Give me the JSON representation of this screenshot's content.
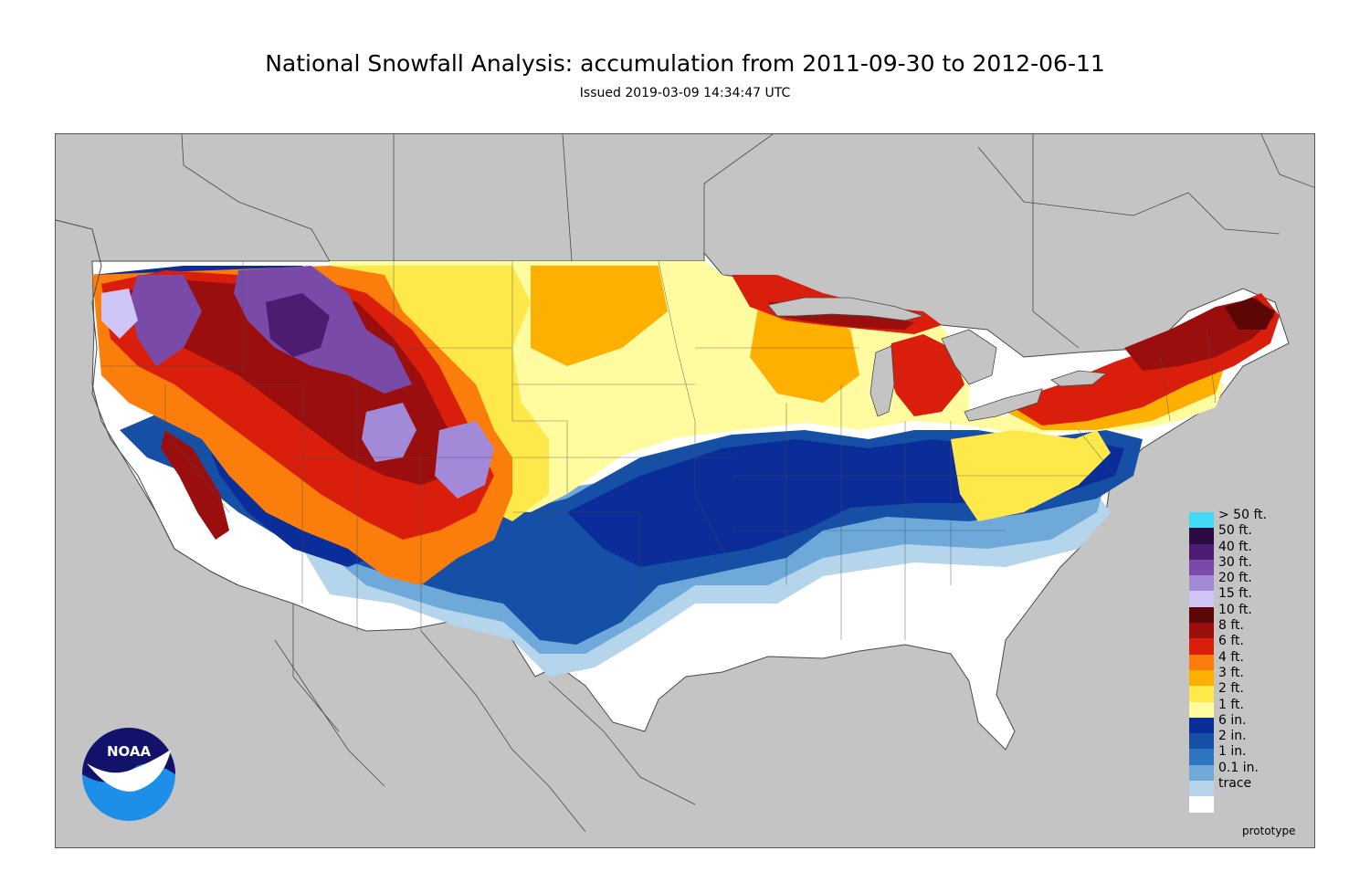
{
  "title": "National Snowfall Analysis: accumulation from 2011-09-30 to 2012-06-11",
  "subtitle": "Issued 2019-03-09 14:34:47 UTC",
  "footer_label": "prototype",
  "logo_text": "NOAA",
  "colors": {
    "background_land": "#c4c4c4",
    "boundary_line": "#4a4a4a",
    "no_snow": "#ffffff"
  },
  "legend": [
    {
      "label": "> 50 ft.",
      "color": "#41d9f5"
    },
    {
      "label": "50 ft.",
      "color": "#2a0a40"
    },
    {
      "label": "40 ft.",
      "color": "#4b1c70"
    },
    {
      "label": "30 ft.",
      "color": "#7a4aa8"
    },
    {
      "label": "20 ft.",
      "color": "#a38ad8"
    },
    {
      "label": "15 ft.",
      "color": "#cfc5f6"
    },
    {
      "label": "10 ft.",
      "color": "#5c0606"
    },
    {
      "label": "8 ft.",
      "color": "#9a0e0e"
    },
    {
      "label": "6 ft.",
      "color": "#d91f0b"
    },
    {
      "label": "4 ft.",
      "color": "#fb7d0b"
    },
    {
      "label": "3 ft.",
      "color": "#fdb000"
    },
    {
      "label": "2 ft.",
      "color": "#fee84a"
    },
    {
      "label": "1 ft.",
      "color": "#fffb9e"
    },
    {
      "label": "6 in.",
      "color": "#0b2d99"
    },
    {
      "label": "2 in.",
      "color": "#164fa6"
    },
    {
      "label": "1 in.",
      "color": "#2f74bf"
    },
    {
      "label": "0.1 in.",
      "color": "#6ea9da"
    },
    {
      "label": "trace",
      "color": "#b5d5ec"
    },
    {
      "label": "",
      "color": "#ffffff"
    }
  ]
}
